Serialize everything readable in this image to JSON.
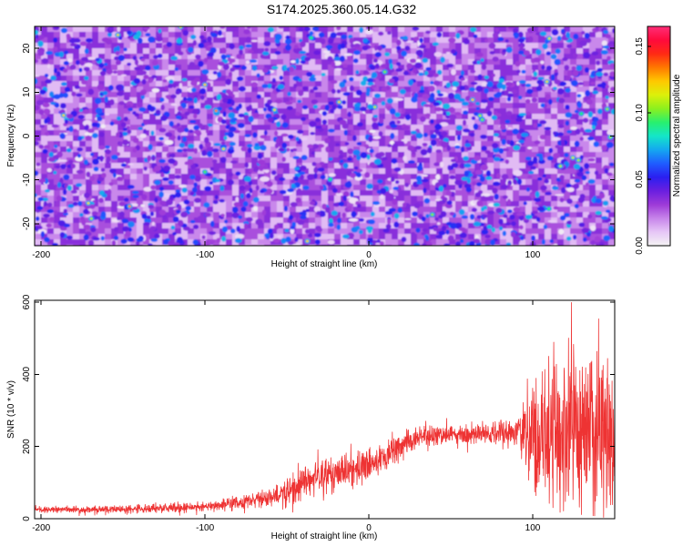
{
  "title": "S174.2025.360.05.14.G32",
  "chart_data": [
    {
      "type": "heatmap",
      "name": "spectrogram",
      "xlabel": "Height of straight line (km)",
      "ylabel": "Frequency (Hz)",
      "xlim": [
        -204,
        150
      ],
      "ylim": [
        -25,
        25
      ],
      "xticks": [
        -200,
        -100,
        0,
        100
      ],
      "xtick_labels": [
        "-200",
        "-100",
        "0",
        "100"
      ],
      "yticks": [
        -20,
        -10,
        0,
        10,
        20
      ],
      "ytick_labels": [
        "-20",
        "-10",
        "0",
        "10",
        "20"
      ],
      "colorbar": {
        "label": "Normalized spectral amplitude",
        "range": [
          0,
          0.165
        ],
        "ticks": [
          0,
          0.05,
          0.1,
          0.15
        ],
        "tick_labels": [
          "0.00",
          "0.05",
          "0.10",
          "0.15"
        ],
        "colors": [
          "#f4f4f4",
          "#e6c6f6",
          "#c784ea",
          "#9d3ad8",
          "#6a1fe0",
          "#2b1ff0",
          "#1f5dff",
          "#14a8f0",
          "#14e6c8",
          "#28f06e",
          "#8cf01e",
          "#dcf00a",
          "#ffc800",
          "#ff7800",
          "#ff2a14",
          "#ff0a3c",
          "#ff2e78"
        ]
      },
      "texture": {
        "background_levels": [
          0.012,
          0.02,
          0.028,
          0.035
        ],
        "blob_count": 1900,
        "blob_level_range": [
          0.03,
          0.075
        ],
        "hot_spot_count": 30,
        "hot_spot_level_range": [
          0.09,
          0.135
        ],
        "light_patch_count": 180,
        "seed": 174
      }
    },
    {
      "type": "line",
      "name": "snr-profile",
      "xlabel": "Height of straight line (km)",
      "ylabel": "SNR (10 * v/v)",
      "xlim": [
        -204,
        150
      ],
      "ylim": [
        0,
        605
      ],
      "xticks": [
        -200,
        -100,
        0,
        100
      ],
      "xtick_labels": [
        "-200",
        "-100",
        "0",
        "100"
      ],
      "yticks": [
        0,
        200,
        400,
        600
      ],
      "ytick_labels": [
        "0",
        "200",
        "400",
        "600"
      ],
      "color": "#ee3333",
      "baseline_profile": {
        "x": [
          -204,
          -150,
          -100,
          -80,
          -60,
          -45,
          -35,
          -25,
          -15,
          0,
          10,
          20,
          30,
          60,
          90,
          100,
          120,
          150
        ],
        "y": [
          25,
          25,
          33,
          45,
          60,
          80,
          110,
          120,
          130,
          150,
          175,
          205,
          225,
          235,
          238,
          240,
          240,
          235
        ]
      },
      "noise_profile": {
        "x": [
          -204,
          -100,
          -60,
          -40,
          -20,
          -5,
          10,
          30,
          60,
          90,
          100,
          110,
          130,
          150
        ],
        "y": [
          7,
          12,
          22,
          45,
          45,
          40,
          35,
          25,
          22,
          35,
          120,
          200,
          210,
          180
        ]
      },
      "sample_count": 2200,
      "seed": 32
    }
  ]
}
